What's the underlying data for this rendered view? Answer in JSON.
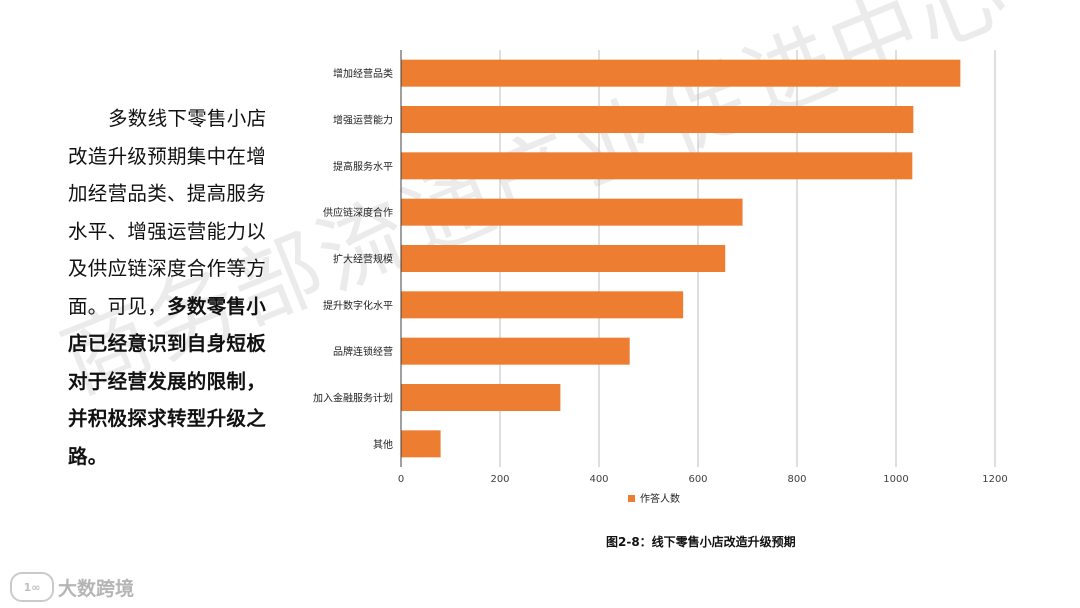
{
  "watermark": "商务部流通产业促进中心",
  "summary": {
    "part1": "多数线下零售小店改造升级预期集中在增加经营品类、提高服务水平、增强运营能力以及供应链深度合作等方面。可见，",
    "bold": "多数零售小店已经意识到自身短板对于经营发展的限制，并积极探求转型升级之路。"
  },
  "caption": "图2-8：线下零售小店改造升级预期",
  "logo": {
    "mark": "1∞",
    "text": "大数跨境"
  },
  "colors": {
    "bar": "#ED7D31",
    "grid": "#BFBFBF",
    "axis": "#404040"
  },
  "chart_data": {
    "type": "bar",
    "orientation": "horizontal",
    "categories": [
      "增加经营品类",
      "增强运营能力",
      "提高服务水平",
      "供应链深度合作",
      "扩大经营规模",
      "提升数字化水平",
      "品牌连锁经营",
      "加入金融服务计划",
      "其他"
    ],
    "series": [
      {
        "name": "作答人数",
        "values": [
          1130,
          1035,
          1033,
          690,
          655,
          570,
          462,
          322,
          80
        ]
      }
    ],
    "xlim": [
      0,
      1200
    ],
    "xticks": [
      0,
      200,
      400,
      600,
      800,
      1000,
      1200
    ],
    "grid": true,
    "legend_position": "bottom"
  }
}
